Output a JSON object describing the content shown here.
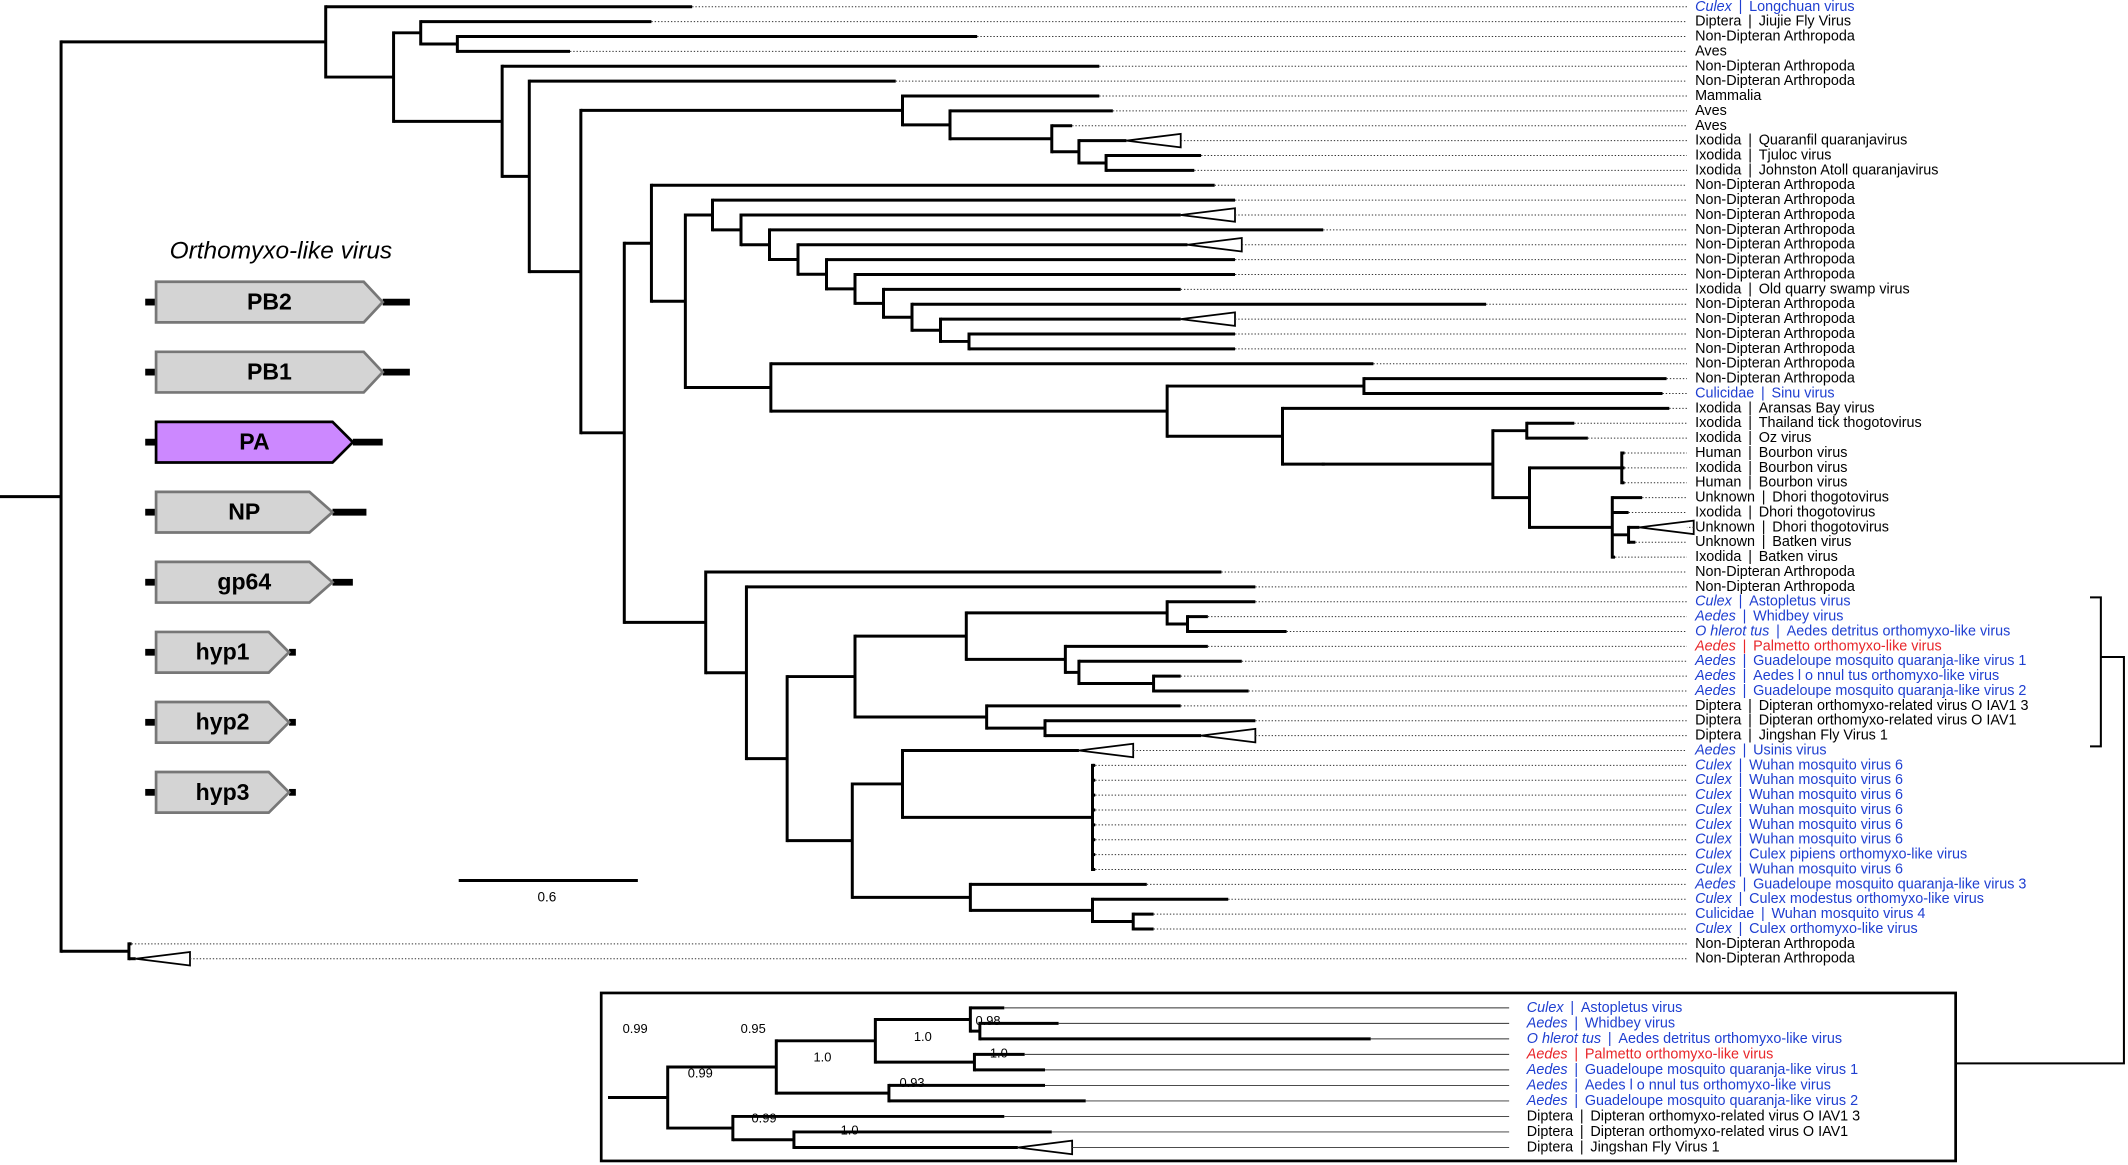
{
  "gene_panel": {
    "title": "Orthomyxo-like virus",
    "genes": [
      {
        "label": "PB2",
        "color": "#d4d4d4"
      },
      {
        "label": "PB1",
        "color": "#d4d4d4"
      },
      {
        "label": "PA",
        "color": "#cc88ff"
      },
      {
        "label": "NP",
        "color": "#d4d4d4"
      },
      {
        "label": "gp64",
        "color": "#d4d4d4"
      },
      {
        "label": "hyp1",
        "color": "#d4d4d4"
      },
      {
        "label": "hyp2",
        "color": "#d4d4d4"
      },
      {
        "label": "hyp3",
        "color": "#d4d4d4"
      }
    ]
  },
  "scale_bar": {
    "label": "0.6"
  },
  "tree": {
    "separator": "|",
    "taxa": [
      {
        "host": "Culex",
        "virus": "Longchuan virus",
        "italic": true,
        "color": "#1f3fd1"
      },
      {
        "host": "Diptera",
        "virus": "Jiujie Fly Virus"
      },
      {
        "host": "Non-Dipteran Arthropoda"
      },
      {
        "host": "Aves"
      },
      {
        "host": "Non-Dipteran Arthropoda"
      },
      {
        "host": "Non-Dipteran Arthropoda"
      },
      {
        "host": "Mammalia"
      },
      {
        "host": "Aves"
      },
      {
        "host": "Aves"
      },
      {
        "host": "Ixodida",
        "virus": "Quaranfil quaranjavirus"
      },
      {
        "host": "Ixodida",
        "virus": "Tjuloc virus"
      },
      {
        "host": "Ixodida",
        "virus": "Johnston Atoll quaranjavirus"
      },
      {
        "host": "Non-Dipteran Arthropoda"
      },
      {
        "host": "Non-Dipteran Arthropoda"
      },
      {
        "host": "Non-Dipteran Arthropoda"
      },
      {
        "host": "Non-Dipteran Arthropoda"
      },
      {
        "host": "Non-Dipteran Arthropoda"
      },
      {
        "host": "Non-Dipteran Arthropoda"
      },
      {
        "host": "Non-Dipteran Arthropoda"
      },
      {
        "host": "Ixodida",
        "virus": "Old quarry swamp virus"
      },
      {
        "host": "Non-Dipteran Arthropoda"
      },
      {
        "host": "Non-Dipteran Arthropoda"
      },
      {
        "host": "Non-Dipteran Arthropoda"
      },
      {
        "host": "Non-Dipteran Arthropoda"
      },
      {
        "host": "Non-Dipteran Arthropoda"
      },
      {
        "host": "Non-Dipteran Arthropoda"
      },
      {
        "host": "Culicidae",
        "virus": "Sinu virus",
        "color": "#1f3fd1"
      },
      {
        "host": "Ixodida",
        "virus": "Aransas Bay virus"
      },
      {
        "host": "Ixodida",
        "virus": "Thailand tick thogotovirus"
      },
      {
        "host": "Ixodida",
        "virus": "Oz virus"
      },
      {
        "host": "Human",
        "virus": "Bourbon virus"
      },
      {
        "host": "Ixodida",
        "virus": "Bourbon virus"
      },
      {
        "host": "Human",
        "virus": "Bourbon virus"
      },
      {
        "host": "Unknown",
        "virus": "Dhori thogotovirus"
      },
      {
        "host": "Ixodida",
        "virus": "Dhori thogotovirus"
      },
      {
        "host": "Unknown",
        "virus": "Dhori thogotovirus"
      },
      {
        "host": "Unknown",
        "virus": "Batken virus"
      },
      {
        "host": "Ixodida",
        "virus": "Batken virus"
      },
      {
        "host": "Non-Dipteran Arthropoda"
      },
      {
        "host": "Non-Dipteran Arthropoda"
      },
      {
        "host": "Culex",
        "virus": "Astopletus virus",
        "italic": true,
        "color": "#1f3fd1"
      },
      {
        "host": "Aedes",
        "virus": "Whidbey virus",
        "italic": true,
        "color": "#1f3fd1"
      },
      {
        "host": "O hlerot tus",
        "virus": "Aedes detritus orthomyxo-like  virus",
        "italic": true,
        "color": "#1f3fd1"
      },
      {
        "host": "Aedes",
        "virus": "Palmetto orthomyxo-like virus",
        "italic": true,
        "color": "#e8262a"
      },
      {
        "host": "Aedes",
        "virus": "Guadeloupe mosquito quaranja-like virus 1",
        "italic": true,
        "color": "#1f3fd1"
      },
      {
        "host": "Aedes",
        "virus": "Aedes  l o nnul tus orthomyxo-like virus",
        "italic": true,
        "color": "#1f3fd1"
      },
      {
        "host": "Aedes",
        "virus": "Guadeloupe mosquito quaranja-like virus 2",
        "italic": true,
        "color": "#1f3fd1"
      },
      {
        "host": "Diptera",
        "virus": "Dipteran orthomyxo-related virus O  IAV1  3"
      },
      {
        "host": "Diptera",
        "virus": "Dipteran orthomyxo-related virus O  IAV1"
      },
      {
        "host": "Diptera",
        "virus": "Jingshan Fly Virus 1"
      },
      {
        "host": "Aedes",
        "virus": "Usinis virus",
        "italic": true,
        "color": "#1f3fd1"
      },
      {
        "host": "Culex",
        "virus": "Wuhan mosquito virus 6",
        "italic": true,
        "color": "#1f3fd1"
      },
      {
        "host": "Culex",
        "virus": "Wuhan mosquito virus 6",
        "italic": true,
        "color": "#1f3fd1"
      },
      {
        "host": "Culex",
        "virus": "Wuhan mosquito virus 6",
        "italic": true,
        "color": "#1f3fd1"
      },
      {
        "host": "Culex",
        "virus": "Wuhan mosquito virus 6",
        "italic": true,
        "color": "#1f3fd1"
      },
      {
        "host": "Culex",
        "virus": "Wuhan mosquito virus 6",
        "italic": true,
        "color": "#1f3fd1"
      },
      {
        "host": "Culex",
        "virus": "Wuhan mosquito virus 6",
        "italic": true,
        "color": "#1f3fd1"
      },
      {
        "host": "Culex",
        "virus": "Culex pipiens orthomyxo-like virus",
        "italic": true,
        "color": "#1f3fd1"
      },
      {
        "host": "Culex",
        "virus": "Wuhan mosquito virus 6",
        "italic": true,
        "color": "#1f3fd1"
      },
      {
        "host": "Aedes",
        "virus": "Guadeloupe mosquito quaranja-like virus 3",
        "italic": true,
        "color": "#1f3fd1"
      },
      {
        "host": "Culex",
        "virus": "Culex modestus orthomyxo-like virus",
        "italic": true,
        "color": "#1f3fd1"
      },
      {
        "host": "Culicidae",
        "virus": "Wuhan mosquito virus 4",
        "color": "#1f3fd1"
      },
      {
        "host": "Culex",
        "virus": "Culex orthomyxo-like virus",
        "italic": true,
        "color": "#1f3fd1"
      },
      {
        "host": "Non-Dipteran Arthropoda"
      },
      {
        "host": "Non-Dipteran Arthropoda"
      }
    ]
  },
  "inset": {
    "supports": [
      "0.99",
      "0.99",
      "0.95",
      "1.0",
      "0.98",
      "1.0",
      "1.0",
      "0.93",
      "0.99",
      "1.0"
    ]
  }
}
